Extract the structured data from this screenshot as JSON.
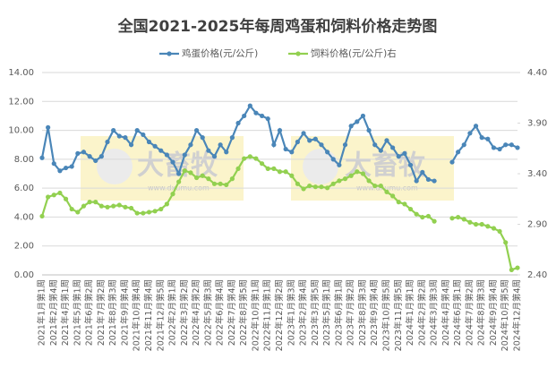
{
  "chart_data": {
    "type": "line",
    "title": "全国2021-2025年每周鸡蛋和饲料价格走势图",
    "watermark": {
      "text": "大畜牧",
      "url": "www.dxumu.com"
    },
    "categories": [
      "2021年1月第1周",
      null,
      "2021年2月第4周",
      null,
      "2021年4月第1周",
      null,
      "2021年5月第1周",
      null,
      "2021年6月第2周",
      null,
      "2021年7月第2周",
      null,
      "2021年8月第3周",
      null,
      "2021年9月第4周",
      null,
      "2021年10月第4周",
      null,
      "2021年11月第4周",
      null,
      "2021年12月第5周",
      null,
      "2022年2月第1周",
      null,
      "2022年3月第2周",
      null,
      "2022年4月第2周",
      null,
      "2022年5月第3周",
      null,
      "2022年6月第4周",
      null,
      "2022年7月第4周",
      null,
      "2022年8月第5周",
      null,
      "2022年10月第1周",
      null,
      "2022年11月第1周",
      null,
      "2022年12月第2周",
      null,
      "2023年1月第3周",
      null,
      "2023年2月第4周",
      null,
      "2023年3月第5周",
      null,
      "2023年5月第1周",
      null,
      "2023年6月第1周",
      null,
      "2023年7月第2周",
      null,
      "2023年8月第3周",
      null,
      "2023年9月第4周",
      null,
      "2023年10月第5周",
      null,
      "2023年11月第5周",
      null,
      "2024年1月第1周",
      null,
      "2024年2月第2周",
      null,
      "2024年3月第3周",
      null,
      "2024年4月第4周",
      null,
      "2024年6月第1周",
      null,
      "2024年7月第2周",
      null,
      "2024年8月第3周",
      null,
      "2024年9月第4周",
      null,
      "2024年10月第5周",
      null,
      "2024年12月第4周"
    ],
    "series": [
      {
        "name": "鸡蛋价格(元/公斤)",
        "color": "#4a86b8",
        "axis": "y",
        "values": [
          8.1,
          10.2,
          7.7,
          7.2,
          7.4,
          7.5,
          8.4,
          8.5,
          8.2,
          7.9,
          8.2,
          9.2,
          10.0,
          9.6,
          9.5,
          9.0,
          10.0,
          9.7,
          9.2,
          8.9,
          8.6,
          8.3,
          7.8,
          7.0,
          8.3,
          9.0,
          10.0,
          9.5,
          8.6,
          8.2,
          9.0,
          8.5,
          9.5,
          10.5,
          11.0,
          11.7,
          11.2,
          11.0,
          10.8,
          9.0,
          10.0,
          8.7,
          8.5,
          9.2,
          9.8,
          9.3,
          9.4,
          9.0,
          8.5,
          8.0,
          7.6,
          9.0,
          10.3,
          10.6,
          11.0,
          10.0,
          9.0,
          8.6,
          9.3,
          8.8,
          8.2,
          8.4,
          7.6,
          6.5,
          7.1,
          6.6,
          6.5,
          null,
          null,
          7.8,
          8.5,
          9.0,
          9.8,
          10.3,
          9.5,
          9.4,
          8.8,
          8.7,
          9.0,
          9.0,
          8.8
        ]
      },
      {
        "name": "饲料价格(元/公斤)右",
        "color": "#92d050",
        "axis": "y2",
        "values": [
          2.98,
          3.17,
          3.19,
          3.21,
          3.15,
          3.05,
          3.02,
          3.08,
          3.12,
          3.12,
          3.08,
          3.07,
          3.08,
          3.09,
          3.07,
          3.06,
          3.01,
          3.01,
          3.02,
          3.03,
          3.05,
          3.1,
          3.2,
          3.32,
          3.43,
          3.41,
          3.36,
          3.38,
          3.35,
          3.3,
          3.3,
          3.29,
          3.35,
          3.45,
          3.55,
          3.57,
          3.55,
          3.5,
          3.45,
          3.45,
          3.42,
          3.42,
          3.38,
          3.3,
          3.25,
          3.28,
          3.27,
          3.27,
          3.26,
          3.3,
          3.33,
          3.35,
          3.38,
          3.42,
          3.4,
          3.33,
          3.28,
          3.28,
          3.22,
          3.18,
          3.12,
          3.1,
          3.05,
          3.0,
          2.97,
          2.98,
          2.93,
          null,
          null,
          2.96,
          2.97,
          2.95,
          2.92,
          2.9,
          2.9,
          2.88,
          2.86,
          2.83,
          2.72,
          2.45,
          2.47
        ]
      }
    ],
    "ylim": [
      0,
      14
    ],
    "yticks": [
      {
        "value": 0,
        "label": "0.00"
      },
      {
        "value": 2,
        "label": "2.00"
      },
      {
        "value": 4,
        "label": "4.00"
      },
      {
        "value": 6,
        "label": "6.00"
      },
      {
        "value": 8,
        "label": "8.00"
      },
      {
        "value": 10,
        "label": "10.00"
      },
      {
        "value": 12,
        "label": "12.00"
      },
      {
        "value": 14,
        "label": "14.00"
      }
    ],
    "y2lim": [
      2.4,
      4.4
    ],
    "y2ticks": [
      {
        "value": 2.4,
        "label": "2.40"
      },
      {
        "value": 2.9,
        "label": "2.90"
      },
      {
        "value": 3.4,
        "label": "3.40"
      },
      {
        "value": 3.9,
        "label": "3.90"
      },
      {
        "value": 4.4,
        "label": "4.40"
      }
    ],
    "grid": true,
    "legend": "top"
  }
}
